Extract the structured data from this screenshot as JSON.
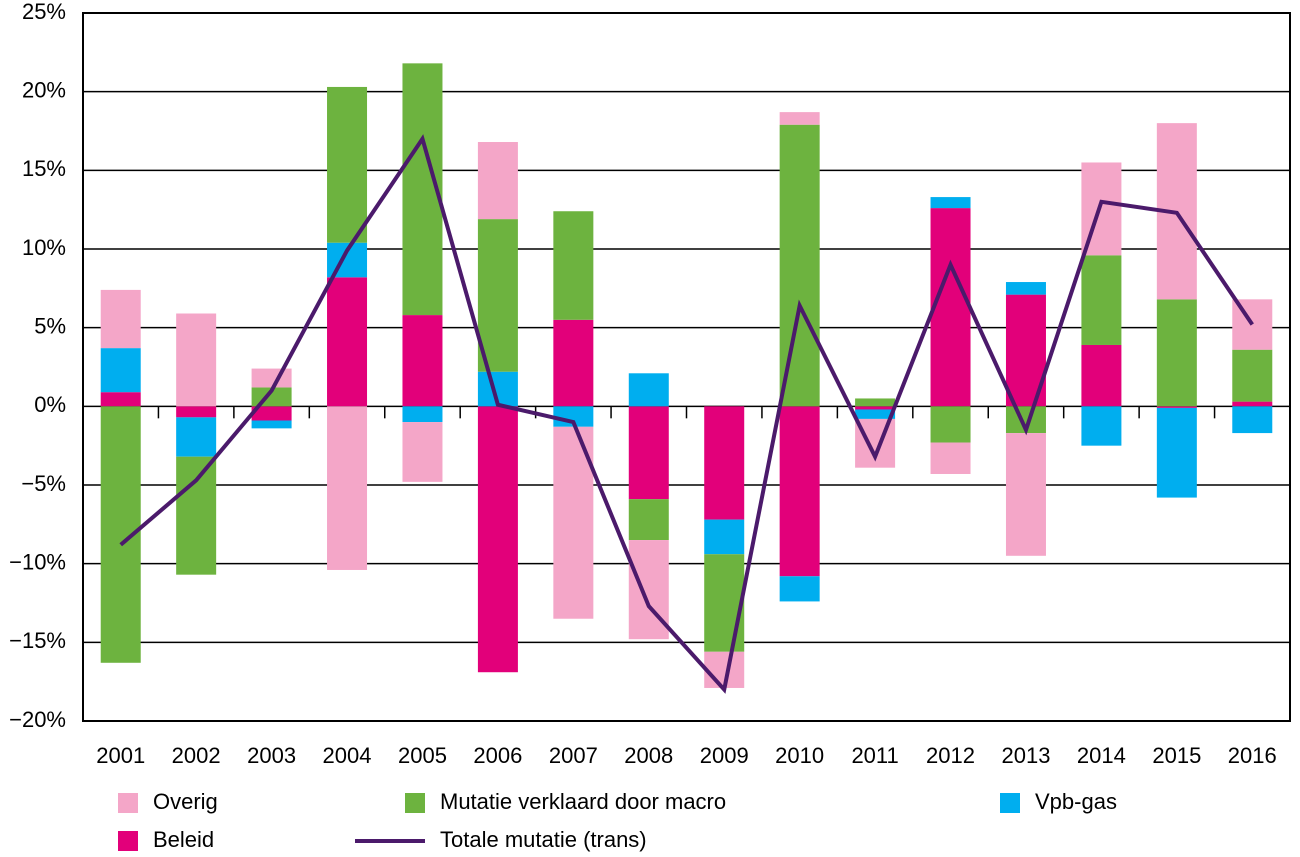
{
  "chart_data": {
    "type": "stacked-bar-line",
    "categories": [
      "2001",
      "2002",
      "2003",
      "2004",
      "2005",
      "2006",
      "2007",
      "2008",
      "2009",
      "2010",
      "2011",
      "2012",
      "2013",
      "2014",
      "2015",
      "2016"
    ],
    "series": [
      {
        "name": "Beleid",
        "color": "#e2007a",
        "type": "bar",
        "values": [
          0.9,
          -0.7,
          -0.9,
          8.2,
          5.8,
          -16.9,
          5.5,
          -5.9,
          -7.2,
          -10.8,
          -0.2,
          12.6,
          7.1,
          3.9,
          -0.1,
          0.3
        ]
      },
      {
        "name": "Vpb-gas",
        "color": "#00aeef",
        "type": "bar",
        "values": [
          2.8,
          -2.5,
          -0.5,
          2.2,
          -1.0,
          2.2,
          -1.3,
          2.1,
          -2.2,
          -1.6,
          -0.6,
          0.7,
          0.8,
          -2.5,
          -5.7,
          -1.7
        ]
      },
      {
        "name": "Mutatie verklaard door macro",
        "color": "#6db33f",
        "type": "bar",
        "values": [
          -16.3,
          -7.5,
          1.2,
          9.9,
          16.0,
          9.7,
          6.9,
          -2.6,
          -6.2,
          17.9,
          0.5,
          -2.3,
          -1.7,
          5.7,
          6.8,
          3.3
        ]
      },
      {
        "name": "Overig",
        "color": "#f4a6c8",
        "type": "bar",
        "values": [
          3.7,
          5.9,
          1.2,
          -10.4,
          -3.8,
          4.9,
          -12.2,
          -6.3,
          -2.3,
          0.8,
          -3.1,
          -2.0,
          -7.8,
          5.9,
          11.2,
          3.2
        ]
      },
      {
        "name": "Totale mutatie (trans)",
        "color": "#4b1a6b",
        "type": "line",
        "values": [
          -8.8,
          -4.7,
          1.0,
          9.9,
          17.0,
          0.1,
          -1.0,
          -12.7,
          -18.0,
          6.4,
          -3.2,
          9.0,
          -1.5,
          13.0,
          12.3,
          5.2
        ]
      }
    ],
    "ylim": [
      -20,
      25
    ],
    "yticks": [
      {
        "value": -20,
        "label": "−20%"
      },
      {
        "value": -15,
        "label": "−15%"
      },
      {
        "value": -10,
        "label": "−10%"
      },
      {
        "value": -5,
        "label": "−5%"
      },
      {
        "value": 0,
        "label": "0%"
      },
      {
        "value": 5,
        "label": "5%"
      },
      {
        "value": 10,
        "label": "10%"
      },
      {
        "value": 15,
        "label": "15%"
      },
      {
        "value": 20,
        "label": "20%"
      },
      {
        "value": 25,
        "label": "25%"
      }
    ],
    "grid": true
  }
}
